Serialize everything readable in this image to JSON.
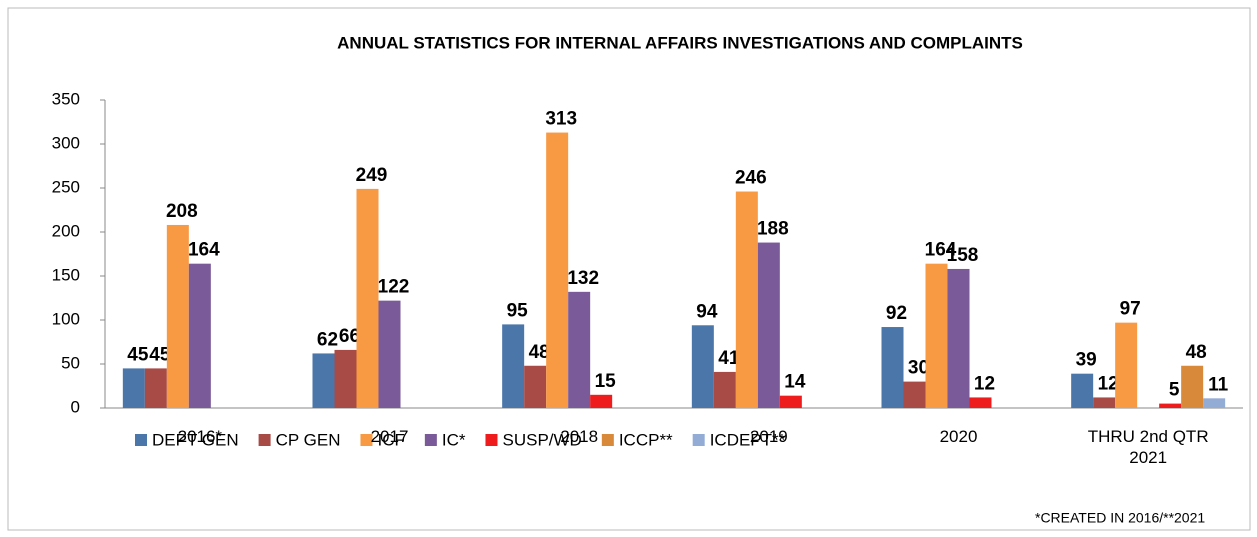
{
  "chart_data": {
    "type": "bar",
    "title": "ANNUAL STATISTICS FOR INTERNAL AFFAIRS INVESTIGATIONS AND COMPLAINTS",
    "categories": [
      "2016*",
      "2017",
      "2018",
      "2019",
      "2020",
      "THRU 2nd QTR 2021"
    ],
    "series": [
      {
        "name": "DEPT GEN",
        "color": "#4a76aa",
        "values": [
          45,
          62,
          95,
          94,
          92,
          39
        ]
      },
      {
        "name": "CP GEN",
        "color": "#a84a46",
        "values": [
          45,
          66,
          48,
          41,
          30,
          12
        ]
      },
      {
        "name": "ICF",
        "color": "#f79a43",
        "values": [
          208,
          249,
          313,
          246,
          164,
          97
        ]
      },
      {
        "name": "IC*",
        "color": "#7a5a98",
        "values": [
          164,
          122,
          132,
          188,
          158,
          null
        ]
      },
      {
        "name": "SUSP/WD",
        "color": "#ee1c1c",
        "values": [
          null,
          null,
          15,
          14,
          12,
          5
        ]
      },
      {
        "name": "ICCP**",
        "color": "#d8893a",
        "values": [
          null,
          null,
          null,
          null,
          null,
          48
        ]
      },
      {
        "name": "ICDEPT**",
        "color": "#93acd6",
        "values": [
          null,
          null,
          null,
          null,
          null,
          11
        ]
      }
    ],
    "ylim": [
      0,
      350
    ],
    "yticks": [
      0,
      50,
      100,
      150,
      200,
      250,
      300,
      350
    ],
    "grid": false,
    "legend": "bottom",
    "footnote": "*CREATED IN 2016/**2021"
  }
}
